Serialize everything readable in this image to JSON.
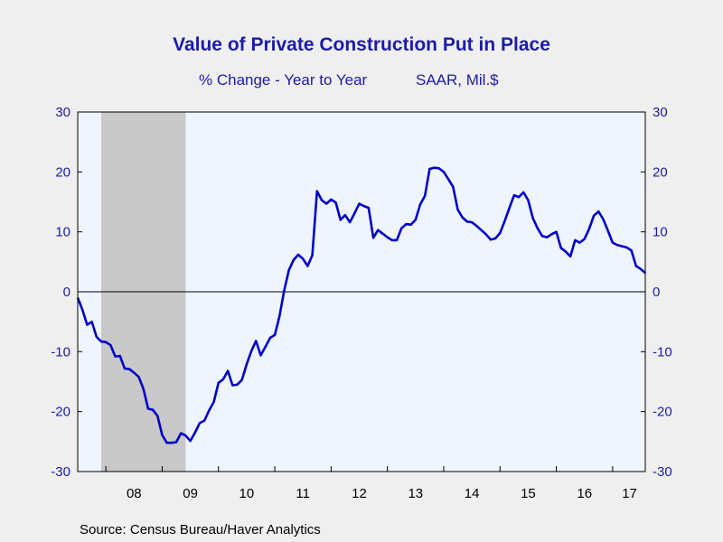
{
  "chart_data": {
    "type": "line",
    "title": "Value of Private Construction Put in Place",
    "subtitle_left": "% Change - Year to Year",
    "subtitle_right": "SAAR, Mil.$",
    "source": "Source:  Census Bureau/Haver Analytics",
    "ylim": [
      -30,
      30
    ],
    "yticks": [
      30,
      20,
      10,
      0,
      -10,
      -20,
      -30
    ],
    "x_range": [
      2007.5,
      2017.58
    ],
    "xtick_labels": [
      {
        "label": "08",
        "year": 2008
      },
      {
        "label": "09",
        "year": 2009
      },
      {
        "label": "10",
        "year": 2010
      },
      {
        "label": "11",
        "year": 2011
      },
      {
        "label": "12",
        "year": 2012
      },
      {
        "label": "13",
        "year": 2013
      },
      {
        "label": "14",
        "year": 2014
      },
      {
        "label": "15",
        "year": 2015
      },
      {
        "label": "16",
        "year": 2016
      },
      {
        "label": "17",
        "year": 2017
      }
    ],
    "recession": {
      "start": 2007.917,
      "end": 2009.417
    },
    "zero_line": true,
    "legend": "none",
    "colors": {
      "line": "#0000c8",
      "recession": "#c8c8c8",
      "plot_bg": "#eef5ff",
      "text": "#1c1ca8"
    },
    "series": [
      {
        "start": "2007-07",
        "frequency": "monthly",
        "values": [
          -1.0,
          -3.0,
          -5.5,
          -5.0,
          -7.5,
          -8.3,
          -8.4,
          -8.9,
          -10.8,
          -10.7,
          -12.8,
          -12.9,
          -13.5,
          -14.2,
          -16.2,
          -19.5,
          -19.7,
          -20.7,
          -23.9,
          -25.2,
          -25.2,
          -25.1,
          -23.6,
          -24.0,
          -24.9,
          -23.5,
          -21.9,
          -21.5,
          -19.8,
          -18.4,
          -15.2,
          -14.6,
          -13.2,
          -15.6,
          -15.5,
          -14.7,
          -12.1,
          -9.9,
          -8.2,
          -10.6,
          -9.2,
          -7.7,
          -7.2,
          -4.1,
          0.2,
          3.6,
          5.3,
          6.2,
          5.5,
          4.3,
          6.1,
          16.8,
          15.3,
          14.7,
          15.4,
          14.9,
          12.0,
          12.8,
          11.6,
          13.1,
          14.7,
          14.3,
          14.0,
          9.0,
          10.3,
          9.7,
          9.1,
          8.6,
          8.6,
          10.6,
          11.3,
          11.2,
          12.0,
          14.6,
          16.0,
          20.5,
          20.7,
          20.6,
          20.0,
          18.8,
          17.5,
          13.7,
          12.4,
          11.7,
          11.6,
          11.0,
          10.3,
          9.6,
          8.7,
          8.9,
          9.8,
          11.8,
          14.0,
          16.1,
          15.8,
          16.6,
          15.3,
          12.3,
          10.6,
          9.3,
          9.1,
          9.6,
          10.0,
          7.3,
          6.7,
          5.9,
          8.6,
          8.2,
          8.8,
          10.5,
          12.7,
          13.4,
          12.1,
          10.2,
          8.2,
          7.8,
          7.6,
          7.4,
          6.9,
          4.3,
          3.8,
          3.1
        ]
      }
    ]
  }
}
